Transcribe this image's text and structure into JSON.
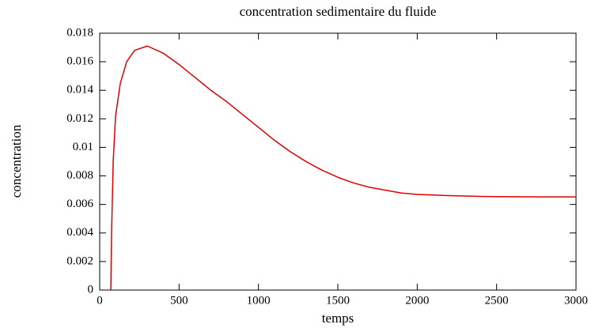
{
  "chart_data": {
    "type": "line",
    "title": "concentration sedimentaire du fluide",
    "xlabel": "temps",
    "ylabel": "concentration",
    "x": [
      70,
      75,
      85,
      100,
      130,
      170,
      220,
      300,
      400,
      500,
      600,
      700,
      800,
      900,
      1000,
      1100,
      1200,
      1300,
      1400,
      1500,
      1600,
      1700,
      1800,
      1900,
      2000,
      2200,
      2400,
      2600,
      2800,
      3000
    ],
    "values": [
      0,
      0.004,
      0.009,
      0.0122,
      0.0145,
      0.016,
      0.0168,
      0.0171,
      0.0166,
      0.0158,
      0.0149,
      0.014,
      0.0132,
      0.0123,
      0.0114,
      0.0105,
      0.0097,
      0.009,
      0.0084,
      0.0079,
      0.0075,
      0.0072,
      0.007,
      0.0068,
      0.0067,
      0.00662,
      0.00656,
      0.00654,
      0.00653,
      0.00653
    ],
    "color": "#e00000",
    "xlim": [
      0,
      3000
    ],
    "xticks": [
      0,
      500,
      1000,
      1500,
      2000,
      2500,
      3000
    ],
    "ylim": [
      0,
      0.018
    ],
    "yticks": [
      0,
      0.002,
      0.004,
      0.006,
      0.008,
      0.01,
      0.012,
      0.014,
      0.016,
      0.018
    ]
  }
}
